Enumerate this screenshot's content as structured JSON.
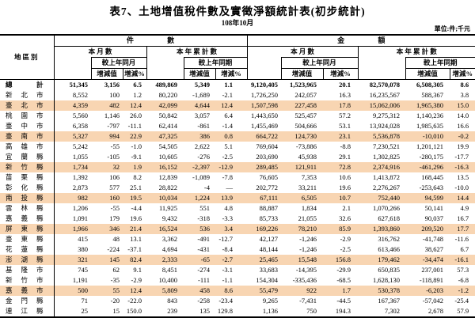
{
  "page": {
    "title": "表7、土地增值稅件數及實徵淨額統計表(初步統計)",
    "subtitle": "108年10月",
    "unit_note": "單位:件;千元"
  },
  "colors": {
    "highlight": "#F8D5B2",
    "border": "#000000"
  },
  "table": {
    "header": {
      "region": "地區別",
      "count_group": "件 數",
      "amount_group": "金 額",
      "monthly": "本 月 數",
      "ytd": "本 年 累 計 數",
      "vs_month": "較上年同月",
      "vs_period": "較上年同期",
      "chg_value": "增減值",
      "chg_pct": "增減%"
    },
    "rows": [
      {
        "region": "總計",
        "total": true,
        "highlight": false,
        "values": [
          "51,345",
          "3,156",
          "6.5",
          "489,869",
          "5,349",
          "1.1",
          "9,120,405",
          "1,523,965",
          "20.1",
          "82,570,078",
          "6,508,305",
          "8.6"
        ]
      },
      {
        "region": "新北市",
        "total": false,
        "highlight": false,
        "values": [
          "8,552",
          "100",
          "1.2",
          "80,220",
          "-1,689",
          "-2.1",
          "1,726,250",
          "242,057",
          "16.3",
          "16,235,567",
          "588,367",
          "3.8"
        ]
      },
      {
        "region": "臺北市",
        "total": false,
        "highlight": true,
        "values": [
          "4,359",
          "482",
          "12.4",
          "42,099",
          "4,644",
          "12.4",
          "1,507,598",
          "227,458",
          "17.8",
          "15,062,006",
          "1,965,380",
          "15.0"
        ]
      },
      {
        "region": "桃園市",
        "total": false,
        "highlight": false,
        "values": [
          "5,560",
          "1,146",
          "26.0",
          "50,842",
          "3,057",
          "6.4",
          "1,443,650",
          "525,457",
          "57.2",
          "9,275,312",
          "1,140,236",
          "14.0"
        ]
      },
      {
        "region": "臺中市",
        "total": false,
        "highlight": false,
        "values": [
          "6,358",
          "-797",
          "-11.1",
          "62,414",
          "-861",
          "-1.4",
          "1,455,469",
          "504,666",
          "53.1",
          "13,924,028",
          "1,985,635",
          "16.6"
        ]
      },
      {
        "region": "臺南市",
        "total": false,
        "highlight": true,
        "values": [
          "5,327",
          "994",
          "22.9",
          "47,325",
          "386",
          "0.8",
          "664,722",
          "124,730",
          "23.1",
          "5,536,878",
          "-10,010",
          "-0.2"
        ]
      },
      {
        "region": "高雄市",
        "total": false,
        "highlight": false,
        "values": [
          "5,242",
          "-55",
          "-1.0",
          "54,505",
          "2,622",
          "5.1",
          "769,604",
          "-73,886",
          "-8.8",
          "7,230,521",
          "1,201,121",
          "19.9"
        ]
      },
      {
        "region": "宜蘭縣",
        "total": false,
        "highlight": false,
        "values": [
          "1,055",
          "-105",
          "-9.1",
          "10,605",
          "-276",
          "-2.5",
          "203,690",
          "45,938",
          "29.1",
          "1,302,825",
          "-280,175",
          "-17.7"
        ]
      },
      {
        "region": "新竹縣",
        "total": false,
        "highlight": true,
        "values": [
          "1,734",
          "32",
          "1.9",
          "16,152",
          "-2,397",
          "-12.9",
          "289,485",
          "121,911",
          "72.8",
          "2,374,916",
          "-461,296",
          "-16.3"
        ]
      },
      {
        "region": "苗栗縣",
        "total": false,
        "highlight": false,
        "values": [
          "1,392",
          "106",
          "8.2",
          "12,839",
          "-1,089",
          "-7.8",
          "76,605",
          "7,353",
          "10.6",
          "1,413,872",
          "168,445",
          "13.5"
        ]
      },
      {
        "region": "彰化縣",
        "total": false,
        "highlight": false,
        "values": [
          "2,873",
          "577",
          "25.1",
          "28,822",
          "-4",
          "—",
          "202,772",
          "33,211",
          "19.6",
          "2,276,267",
          "-253,643",
          "-10.0"
        ]
      },
      {
        "region": "南投縣",
        "total": false,
        "highlight": true,
        "values": [
          "982",
          "160",
          "19.5",
          "10,034",
          "1,224",
          "13.9",
          "67,111",
          "6,505",
          "10.7",
          "752,440",
          "94,599",
          "14.4"
        ]
      },
      {
        "region": "雲林縣",
        "total": false,
        "highlight": false,
        "values": [
          "1,206",
          "-55",
          "-4.4",
          "11,925",
          "551",
          "4.8",
          "88,887",
          "1,834",
          "2.1",
          "1,070,266",
          "50,141",
          "4.9"
        ]
      },
      {
        "region": "嘉義縣",
        "total": false,
        "highlight": false,
        "values": [
          "1,091",
          "179",
          "19.6",
          "9,432",
          "-318",
          "-3.3",
          "85,733",
          "21,055",
          "32.6",
          "627,618",
          "90,037",
          "16.7"
        ]
      },
      {
        "region": "屏東縣",
        "total": false,
        "highlight": true,
        "values": [
          "1,966",
          "346",
          "21.4",
          "16,524",
          "536",
          "3.4",
          "169,226",
          "78,210",
          "85.9",
          "1,393,860",
          "209,520",
          "17.7"
        ]
      },
      {
        "region": "臺東縣",
        "total": false,
        "highlight": false,
        "values": [
          "415",
          "48",
          "13.1",
          "3,362",
          "-491",
          "-12.7",
          "42,127",
          "-1,246",
          "-2.9",
          "316,762",
          "-41,748",
          "-11.6"
        ]
      },
      {
        "region": "花蓮縣",
        "total": false,
        "highlight": false,
        "values": [
          "380",
          "-224",
          "-37.1",
          "4,694",
          "-431",
          "-8.4",
          "48,144",
          "-1,246",
          "-2.5",
          "613,466",
          "38,627",
          "6.7"
        ]
      },
      {
        "region": "澎湖縣",
        "total": false,
        "highlight": true,
        "values": [
          "321",
          "145",
          "82.4",
          "2,333",
          "-65",
          "-2.7",
          "25,465",
          "15,548",
          "156.8",
          "179,462",
          "-34,474",
          "-16.1"
        ]
      },
      {
        "region": "基隆市",
        "total": false,
        "highlight": false,
        "values": [
          "745",
          "62",
          "9.1",
          "8,451",
          "-274",
          "-3.1",
          "33,683",
          "-14,395",
          "-29.9",
          "650,835",
          "237,001",
          "57.3"
        ]
      },
      {
        "region": "新竹市",
        "total": false,
        "highlight": false,
        "values": [
          "1,191",
          "-35",
          "-2.9",
          "10,400",
          "-111",
          "-1.1",
          "154,304",
          "-335,436",
          "-68.5",
          "1,628,130",
          "-118,891",
          "-6.8"
        ]
      },
      {
        "region": "嘉義市",
        "total": false,
        "highlight": true,
        "values": [
          "500",
          "55",
          "12.4",
          "5,809",
          "458",
          "8.6",
          "55,479",
          "922",
          "1.7",
          "530,378",
          "-6,203",
          "-1.2"
        ]
      },
      {
        "region": "金門縣",
        "total": false,
        "highlight": false,
        "values": [
          "71",
          "-20",
          "-22.0",
          "843",
          "-258",
          "-23.4",
          "9,265",
          "-7,431",
          "-44.5",
          "167,367",
          "-57,042",
          "-25.4"
        ]
      },
      {
        "region": "連江縣",
        "total": false,
        "highlight": false,
        "values": [
          "25",
          "15",
          "150.0",
          "239",
          "135",
          "129.8",
          "1,136",
          "750",
          "194.3",
          "7,302",
          "2,678",
          "57.9"
        ]
      }
    ]
  }
}
